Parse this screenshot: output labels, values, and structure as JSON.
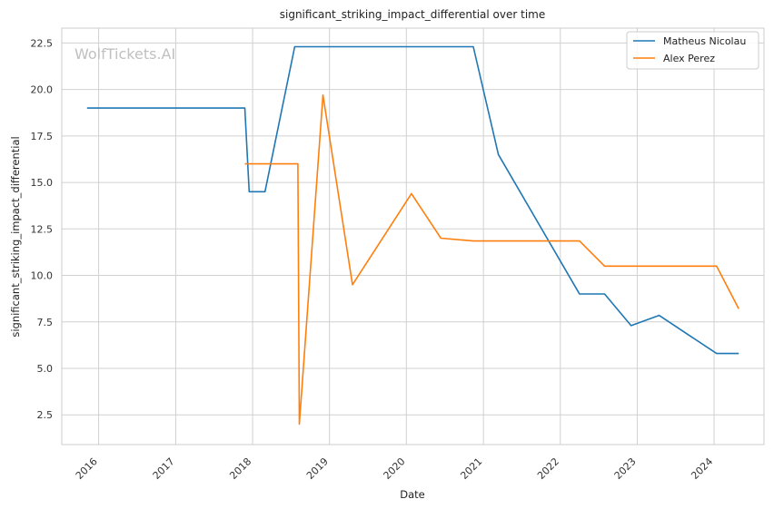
{
  "watermark": "WolfTickets.AI",
  "chart_data": {
    "type": "line",
    "title": "significant_striking_impact_differential over time",
    "xlabel": "Date",
    "ylabel": "significant_striking_impact_differential",
    "xlim": [
      "2015-07-10",
      "2024-08-25"
    ],
    "ylim": [
      0.9,
      23.3
    ],
    "x_ticks": [
      "2016",
      "2017",
      "2018",
      "2019",
      "2020",
      "2021",
      "2022",
      "2023",
      "2024"
    ],
    "y_ticks": [
      "2.5",
      "5.0",
      "7.5",
      "10.0",
      "12.5",
      "15.0",
      "17.5",
      "20.0",
      "22.5"
    ],
    "grid": true,
    "legend_position": "upper right",
    "series": [
      {
        "name": "Matheus Nicolau",
        "color": "#1f77b4",
        "points": [
          [
            "2015-11-07",
            19.0
          ],
          [
            "2017-11-25",
            19.0
          ],
          [
            "2017-12-16",
            14.5
          ],
          [
            "2018-03-01",
            14.5
          ],
          [
            "2018-07-20",
            22.3
          ],
          [
            "2020-11-14",
            22.3
          ],
          [
            "2021-03-13",
            16.5
          ],
          [
            "2022-04-02",
            9.0
          ],
          [
            "2022-07-30",
            9.0
          ],
          [
            "2022-12-03",
            7.3
          ],
          [
            "2023-04-15",
            7.85
          ],
          [
            "2024-01-13",
            5.8
          ],
          [
            "2024-04-27",
            5.8
          ]
        ]
      },
      {
        "name": "Alex Perez",
        "color": "#ff7f0e",
        "points": [
          [
            "2017-11-25",
            16.0
          ],
          [
            "2018-08-04",
            16.0
          ],
          [
            "2018-08-11",
            2.0
          ],
          [
            "2018-12-01",
            19.7
          ],
          [
            "2019-04-20",
            9.5
          ],
          [
            "2020-01-25",
            14.4
          ],
          [
            "2020-06-13",
            12.0
          ],
          [
            "2020-11-14",
            11.85
          ],
          [
            "2022-04-02",
            11.85
          ],
          [
            "2022-07-30",
            10.5
          ],
          [
            "2024-01-13",
            10.5
          ],
          [
            "2024-04-27",
            8.2
          ]
        ]
      }
    ]
  }
}
